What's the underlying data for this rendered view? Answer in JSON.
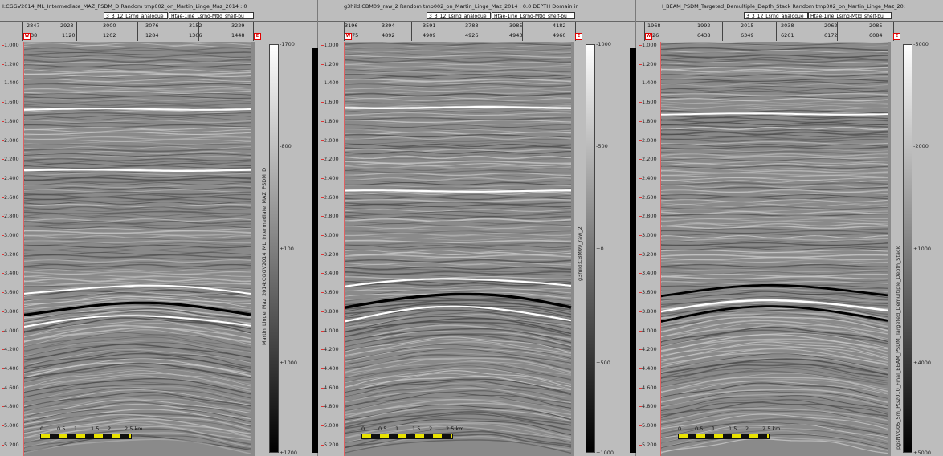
{
  "panels": [
    {
      "title": "I:CGGV2014_ML_Intermediate_MAZ_PSDM_D    Random  tmp002_on_Martin_Linge_Maz_2014 : 0",
      "layer_a": "3_3_12_Lsrng_analogue",
      "layer_b": "Htae-1ine_Lsrng-Mtld_shelf-bu",
      "row1": [
        "2847",
        "2923",
        "3000",
        "3076",
        "3152",
        "3229"
      ],
      "row2": [
        "38",
        "1120",
        "1202",
        "1284",
        "1366",
        "1448"
      ],
      "box_left": "W",
      "box_right": "E",
      "depths": [
        "1.000",
        "1.200",
        "1.400",
        "1.600",
        "1.800",
        "2.000",
        "2.200",
        "2.400",
        "2.600",
        "2.800",
        "3.000",
        "3.200",
        "3.400",
        "3.600",
        "3.800",
        "4.000",
        "4.200",
        "4.400",
        "4.600",
        "4.800",
        "5.000",
        "5.200"
      ],
      "scale_labels": [
        "0",
        "0.5",
        "1",
        "1.5",
        "2",
        "2.5 km"
      ],
      "colorbar_ticks": [
        "-1700",
        "-800",
        "+100",
        "+1000",
        "+1700"
      ],
      "colorbar_label": "Martin_Linge_Maz_2014:CGGV2014_ML_Intermediate_MAZ_PSDM_D"
    },
    {
      "title": "g3hild:CBM09_raw_2    Random  tmp002_on_Martin_Linge_Maz_2014 : 0.0    DEPTH Domain in",
      "layer_a": "3_3_12_Lsrng_analogue",
      "layer_b": "Htae-1ine_Lsrng-Mtld_shelf-bu",
      "row1": [
        "3196",
        "3394",
        "3591",
        "3788",
        "3985",
        "4182"
      ],
      "row2": [
        "75",
        "4892",
        "4909",
        "4926",
        "4943",
        "4960"
      ],
      "box_left": "W",
      "box_right": "E",
      "depths": [
        "1.000",
        "1.200",
        "1.400",
        "1.600",
        "1.800",
        "2.000",
        "2.200",
        "2.400",
        "2.600",
        "2.800",
        "3.000",
        "3.200",
        "3.400",
        "3.600",
        "3.800",
        "4.000",
        "4.200",
        "4.400",
        "4.600",
        "4.800",
        "5.000",
        "5.200"
      ],
      "scale_labels": [
        "0",
        "0.5",
        "1",
        "1.5",
        "2",
        "2.5 km"
      ],
      "colorbar_ticks": [
        "-1000",
        "-500",
        "+0",
        "+500",
        "+1000"
      ],
      "colorbar_label": "g3hild:CBM09_raw_2"
    },
    {
      "title": "I_BEAM_PSDM_Targeted_Demultiple_Depth_Stack    Random  tmp002_on_Martin_Linge_Maz_20:",
      "layer_a": "3_3_12_Lsrng_analogue",
      "layer_b": "Htae-1ine_Lsrng-Mtld_shelf-bu",
      "row1": [
        "1968",
        "1992",
        "2015",
        "2038",
        "2062",
        "2085"
      ],
      "row2": [
        "26",
        "6438",
        "6349",
        "6261",
        "6172",
        "6084"
      ],
      "box_left": "W",
      "box_right": "E",
      "depths": [
        "1.000",
        "1.200",
        "1.400",
        "1.600",
        "1.800",
        "2.000",
        "2.200",
        "2.400",
        "2.600",
        "2.800",
        "3.000",
        "3.200",
        "3.400",
        "3.600",
        "3.800",
        "4.000",
        "4.200",
        "4.400",
        "4.600",
        "4.800",
        "5.000",
        "5.200"
      ],
      "scale_labels": [
        "0",
        "0.5",
        "1",
        "1.5",
        "2",
        "2.5 km"
      ],
      "colorbar_ticks": [
        "-5000",
        "-2000",
        "+1000",
        "+4000",
        "+5000"
      ],
      "colorbar_label": "pgsNVG05_Sm_PG2010_Final_BEAM_PSDM_Targeted_Demultiple_Depth_Stack"
    }
  ]
}
